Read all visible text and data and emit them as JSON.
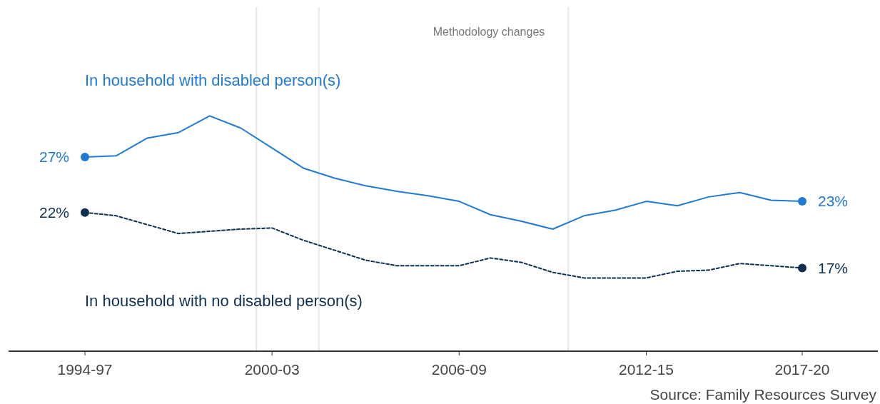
{
  "chart_data": {
    "type": "line",
    "categories": [
      "1994-97",
      null,
      null,
      null,
      null,
      null,
      "2000-03",
      null,
      null,
      null,
      null,
      null,
      "2006-09",
      null,
      null,
      null,
      null,
      null,
      "2012-15",
      null,
      null,
      null,
      null,
      "2017-20"
    ],
    "ylim": [
      9.5,
      40.5
    ],
    "line_style": "solid",
    "marker": "none",
    "series": [
      {
        "name": "In household with disabled person(s)",
        "color": "#2079d2",
        "values": [
          27,
          27.1,
          28.7,
          29.2,
          30.7,
          29.6,
          27.8,
          26.0,
          25.1,
          24.4,
          23.9,
          23.5,
          23.0,
          21.8,
          21.2,
          20.5,
          21.7,
          22.2,
          23.0,
          22.6,
          23.4,
          23.8,
          23.1,
          23
        ],
        "value_labels": [
          "27%",
          null,
          null,
          null,
          null,
          null,
          null,
          null,
          null,
          null,
          null,
          null,
          null,
          null,
          null,
          null,
          null,
          null,
          null,
          null,
          null,
          null,
          null,
          "23%"
        ]
      },
      {
        "name": "In household with no disabled person(s)",
        "color": "#0d2f52",
        "line_style": "dashed",
        "values": [
          22,
          21.7,
          20.9,
          20.1,
          20.3,
          20.5,
          20.6,
          19.5,
          18.6,
          17.7,
          17.2,
          17.2,
          17.2,
          17.9,
          17.5,
          16.6,
          16.1,
          16.1,
          16.1,
          16.7,
          16.8,
          17.4,
          17.2,
          17
        ],
        "value_labels": [
          "22%",
          null,
          null,
          null,
          null,
          null,
          null,
          null,
          null,
          null,
          null,
          null,
          null,
          null,
          null,
          null,
          null,
          null,
          null,
          null,
          null,
          null,
          null,
          "17%"
        ]
      }
    ],
    "annotations": [
      "Methodology changes",
      "Source: Family Resources Survey"
    ]
  }
}
